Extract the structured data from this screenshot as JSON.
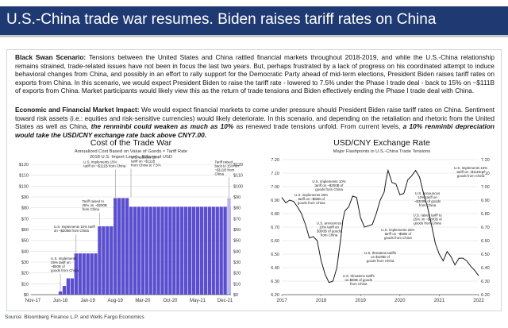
{
  "header": {
    "title": "U.S.-China trade war resumes. Biden raises tariff rates on China"
  },
  "scenario": {
    "label": "Black Swan Scenario:",
    "text": " Tensions between the United States and China rattled financial markets throughout 2018-2019, and while the U.S.-China relationship remains strained, trade-related issues have not been in focus the last two years. But, perhaps frustrated by a lack of progress on his coordinated attempt to induce behavioral changes from China, and possibly in an effort to rally support for the Democratic Party ahead of mid-term elections, President Biden raises tariff rates on exports from China. In this scenario, we would expect President Biden to raise the tariff rate - lowered to 7.5% under the Phase I trade deal - back to 15% on ~$111B of exports from China. Market participants would likely view this as the return of trade tensions and Biden effectively ending the Phase I trade deal with China."
  },
  "impact": {
    "label": "Economic and Financial Market Impact:",
    "text_a": " We would expect financial markets to come under pressure should President Biden raise tariff rates on China. Sentiment toward risk assets (i.e.: equities and risk-sensitive currencies) would likely deteriorate. In this scenario, and depending on the retaliation and rhetoric from the United States as well as China, ",
    "em_a": "the renminbi could weaken as much as 10%",
    "text_b": " as renewed trade tensions unfold. From current levels, ",
    "em_b": "a 10% renminbi depreciation would take the USD/CNY exchange rate back above CNY7.00.",
    "text_c": ""
  },
  "source": "Source: Bloomberg Finance L.P. and Wells Fargo Economics",
  "colors": {
    "title_bg": "#1f3a73",
    "bar": "#5b4fcf",
    "bar_light": "#b9b3ee",
    "line": "#1a1a1a",
    "grid": "#d9d9d9"
  },
  "chart_data": [
    {
      "type": "bar",
      "title": "Cost of the Trade War",
      "subtitle": "Annualized Cost Based on Value of Goods × Tariff Rate",
      "subtitle2": "2018 U.S. Import Levels, Billions of USD",
      "ylim": [
        0,
        120
      ],
      "yticks": [
        "$0",
        "$10",
        "$20",
        "$30",
        "$40",
        "$50",
        "$60",
        "$70",
        "$80",
        "$90",
        "$100",
        "$110",
        "$120"
      ],
      "xtick_labels": [
        "Nov-17",
        "Jun-18",
        "Jan-19",
        "Aug-19",
        "Mar-20",
        "Oct-20",
        "May-21",
        "Dec-21"
      ],
      "xtick_index": [
        0,
        7,
        14,
        21,
        28,
        35,
        42,
        49
      ],
      "values": [
        0,
        0,
        0,
        0,
        0,
        0,
        0,
        3,
        8,
        15,
        15,
        38,
        38,
        38,
        38,
        38,
        38,
        63,
        63,
        63,
        63,
        89,
        89,
        89,
        89,
        81,
        81,
        81,
        81,
        81,
        81,
        81,
        81,
        81,
        81,
        81,
        81,
        81,
        81,
        81,
        81,
        81,
        81,
        81,
        81,
        81,
        81,
        81,
        81,
        81,
        81
      ],
      "projection_value": 89,
      "annotations": [
        {
          "lines": [
            "U.S. implements",
            "25% tariff on",
            "~$50B of",
            "goods from China"
          ],
          "i": 7,
          "v": 3
        },
        {
          "lines": [
            "U.S. implements 10% tariff",
            "on ~$200B from China"
          ],
          "i": 11,
          "v": 38
        },
        {
          "lines": [
            "Tariff raised to",
            "25% on ~$200B",
            "from China"
          ],
          "i": 17,
          "v": 63
        },
        {
          "lines": [
            "U.S. implements 15%",
            "tariff on ~$111B from China"
          ],
          "i": 21,
          "v": 89
        },
        {
          "lines": [
            "U.S. reduces 15%",
            "tariff on ~$111B",
            "from China to 7.5%"
          ],
          "i": 25,
          "v": 89
        },
        {
          "lines": [
            "Tariff raised",
            "back to 15% on",
            "~$111B from",
            "China"
          ],
          "i": 50,
          "v": 89
        }
      ]
    },
    {
      "type": "line",
      "title": "USD/CNY Exchange Rate",
      "subtitle": "Major Flashpoints in U.S.-China Trade Tensions",
      "ylim": [
        6.2,
        7.2
      ],
      "yticks": [
        "6.20",
        "6.30",
        "6.40",
        "6.50",
        "6.60",
        "6.70",
        "6.80",
        "6.90",
        "7.00",
        "7.10",
        "7.20"
      ],
      "xlim": [
        2017,
        2022
      ],
      "xtick_labels": [
        "2017",
        "2018",
        "2019",
        "2020",
        "2021",
        "2022"
      ],
      "x": [
        2017.0,
        2017.1,
        2017.2,
        2017.3,
        2017.4,
        2017.5,
        2017.6,
        2017.7,
        2017.8,
        2017.9,
        2018.0,
        2018.1,
        2018.2,
        2018.3,
        2018.4,
        2018.5,
        2018.55,
        2018.6,
        2018.7,
        2018.8,
        2018.9,
        2019.0,
        2019.1,
        2019.2,
        2019.3,
        2019.4,
        2019.5,
        2019.6,
        2019.65,
        2019.7,
        2019.8,
        2019.9,
        2020.0,
        2020.1,
        2020.2,
        2020.3,
        2020.4,
        2020.5,
        2020.6,
        2020.7,
        2020.8,
        2020.9,
        2021.0,
        2021.1,
        2021.2,
        2021.3,
        2021.4,
        2021.5,
        2021.6,
        2021.7,
        2021.8,
        2021.9,
        2022.0
      ],
      "y": [
        6.92,
        6.88,
        6.9,
        6.89,
        6.85,
        6.8,
        6.72,
        6.62,
        6.63,
        6.6,
        6.45,
        6.35,
        6.29,
        6.3,
        6.4,
        6.62,
        6.75,
        6.82,
        6.85,
        6.93,
        6.92,
        6.77,
        6.7,
        6.71,
        6.72,
        6.8,
        6.9,
        6.96,
        7.05,
        7.12,
        7.03,
        7.02,
        6.94,
        6.95,
        7.05,
        7.08,
        7.12,
        7.07,
        6.95,
        6.85,
        6.72,
        6.58,
        6.5,
        6.45,
        6.52,
        6.48,
        6.42,
        6.47,
        6.47,
        6.45,
        6.41,
        6.38,
        6.34
      ],
      "annotations": [
        {
          "lines": [
            "U.S. implements 15%",
            "tariff on ~$111B of",
            "goods from China"
          ],
          "x": 2021.8,
          "y": 7.13
        },
        {
          "lines": [
            "U.S. implements 10%",
            "tariff on ~$200B of",
            "goods from China"
          ],
          "x": 2018.2,
          "y": 7.03
        },
        {
          "lines": [
            "U.S. implements 25%",
            "tariff on ~$50B of",
            "goods from China"
          ],
          "x": 2017.75,
          "y": 6.93
        },
        {
          "lines": [
            "U.S. announces",
            "10% tariff on",
            "~$300B of goods",
            "from China"
          ],
          "x": 2020.7,
          "y": 6.94
        },
        {
          "lines": [
            "U.S. announces",
            "10% tariff on",
            "$300B of goods",
            "from China"
          ],
          "x": 2018.2,
          "y": 6.72
        },
        {
          "lines": [
            "U.S. raises tariff to",
            "25% on ~$200B of",
            "goods from China"
          ],
          "x": 2020.7,
          "y": 6.78
        },
        {
          "lines": [
            "U.S. implements 25%",
            "tariff on ~$50B of",
            "goods from China"
          ],
          "x": 2019.95,
          "y": 6.67
        },
        {
          "lines": [
            "U.S. threatens tariffs",
            "on $100B of",
            "goods from China"
          ],
          "x": 2019.5,
          "y": 6.5
        },
        {
          "lines": [
            "U.S. threatens tariffs",
            "on $50B of goods",
            "from China"
          ],
          "x": 2018.95,
          "y": 6.33
        }
      ]
    }
  ]
}
